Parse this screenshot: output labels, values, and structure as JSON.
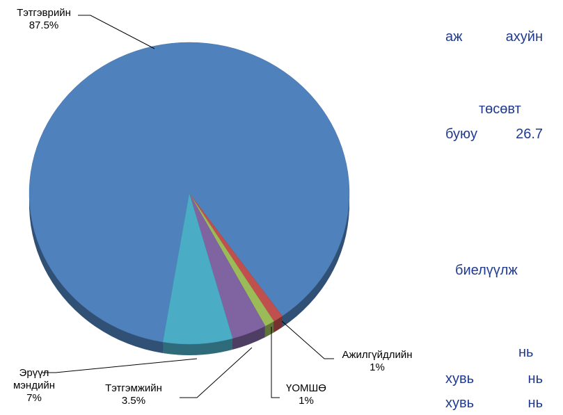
{
  "chart_data": {
    "type": "pie",
    "categories": [
      "Тэтгэврийн",
      "Ажилгүйдлийн",
      "ҮОМШӨ",
      "Тэтгэмжийн",
      "Эрүүл мэндийн"
    ],
    "values": [
      87.5,
      1,
      1,
      3.5,
      7
    ],
    "value_labels": [
      "87.5%",
      "1%",
      "1%",
      "3.5%",
      "7%"
    ],
    "colors": [
      "#4f81bd",
      "#c0504d",
      "#9bbb59",
      "#8064a2",
      "#4bacc6"
    ]
  },
  "side_text": [
    "аж ахуйн",
    "төсөвт",
    "буюу 26.7",
    "биелүүлж",
    "нь",
    "хувь нь",
    "хувь нь"
  ]
}
